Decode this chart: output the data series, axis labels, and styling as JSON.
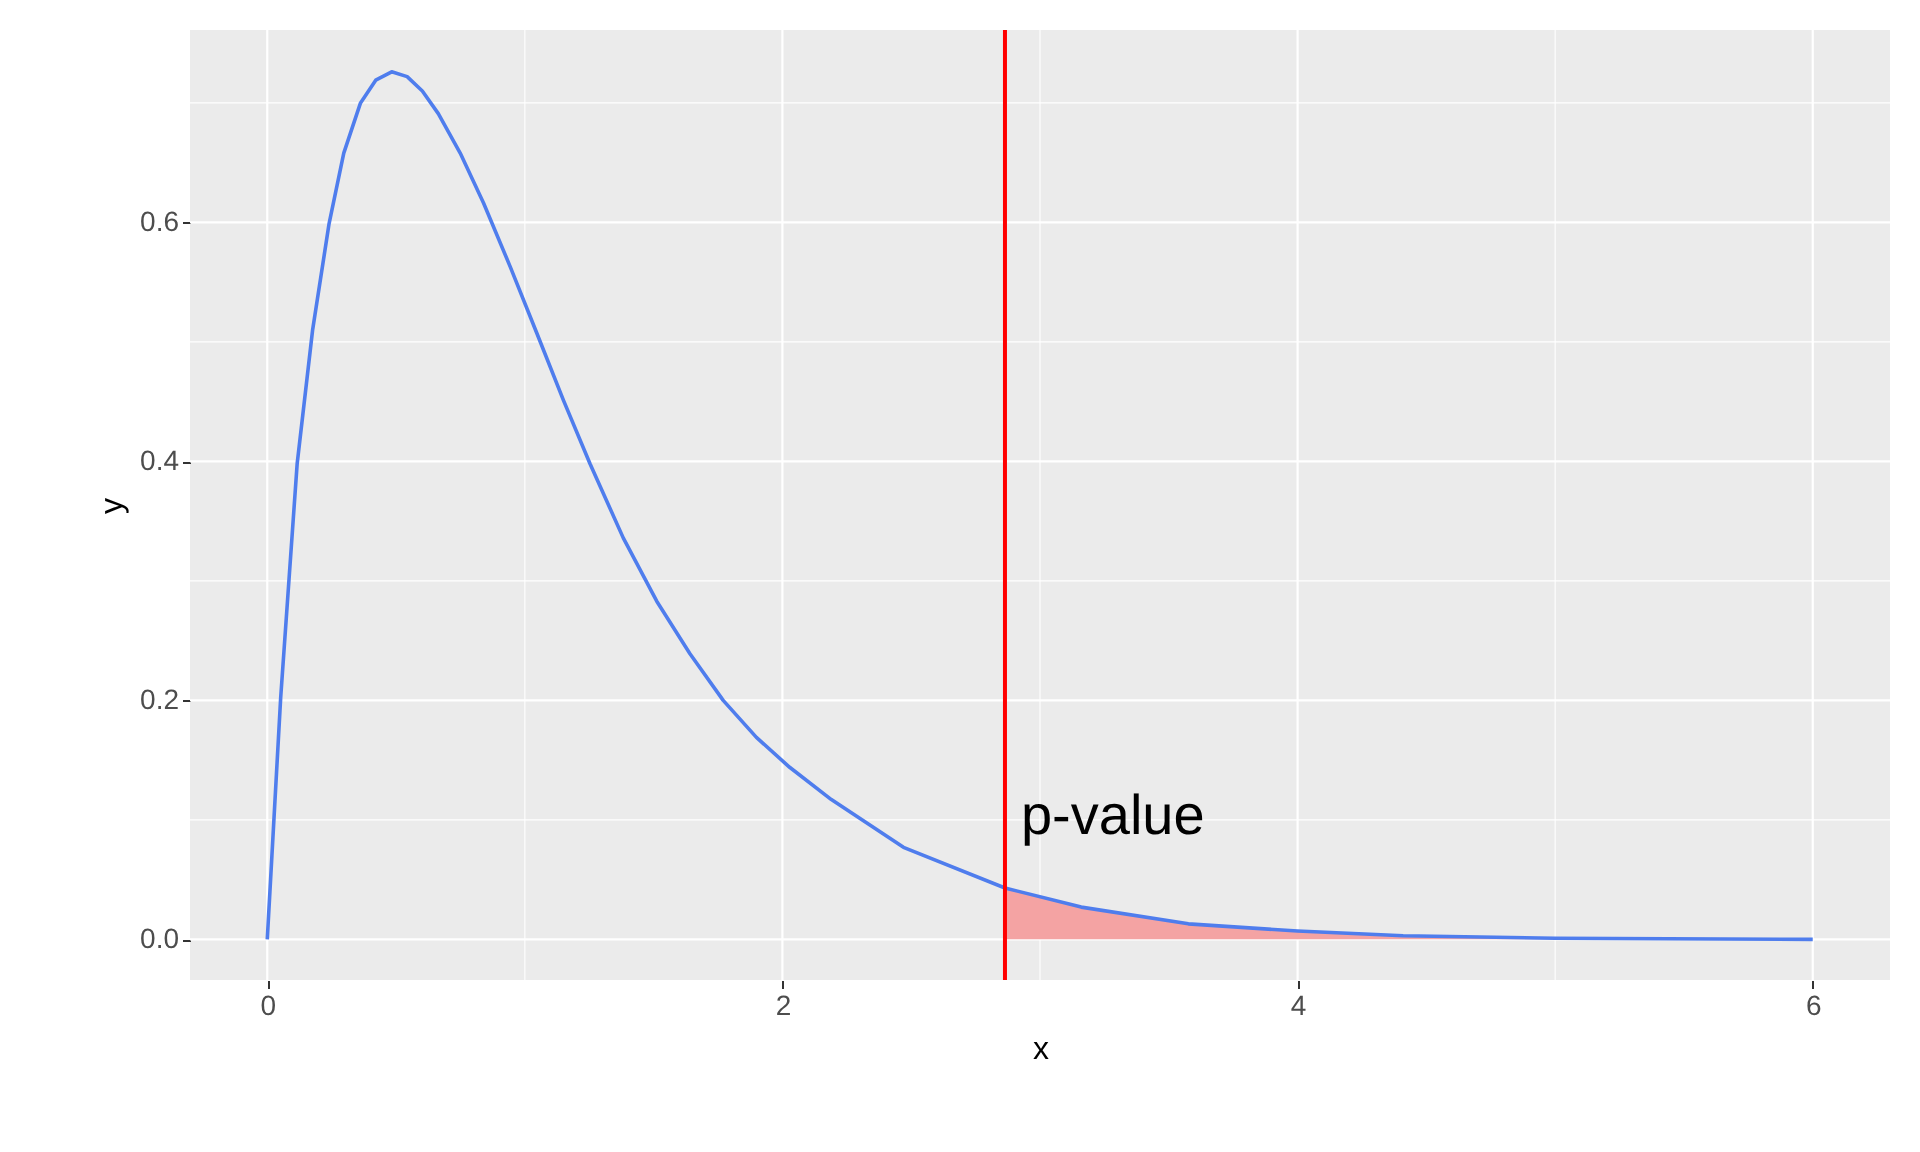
{
  "chart_data": {
    "type": "line",
    "xlabel": "x",
    "ylabel": "y",
    "xlim": [
      -0.3,
      6.3
    ],
    "ylim": [
      -0.034,
      0.761
    ],
    "xticks": [
      0,
      {
        "value": 1,
        "label": null
      },
      2,
      {
        "value": 3,
        "label": null
      },
      4,
      {
        "value": 5,
        "label": null
      },
      6
    ],
    "yticks": [
      {
        "value": 0,
        "label": "0.0"
      },
      {
        "value": 0.1,
        "label": null
      },
      0.2,
      {
        "value": 0.3,
        "label": null
      },
      0.4,
      {
        "value": 0.5,
        "label": null
      },
      0.6,
      {
        "value": 0.7,
        "label": null
      }
    ],
    "grid": true,
    "marker": "none",
    "line_style": "solid",
    "series": [
      {
        "color": "#4f7ded",
        "x": [
          0,
          0.052,
          0.116,
          0.176,
          0.24,
          0.297,
          0.362,
          0.421,
          0.483,
          0.543,
          0.602,
          0.664,
          0.749,
          0.84,
          0.943,
          1.047,
          1.15,
          1.253,
          1.382,
          1.512,
          1.641,
          1.77,
          1.899,
          2.028,
          2.19,
          2.47,
          2.864,
          3.16,
          3.576,
          4.0,
          4.41,
          5.0,
          6.0
        ],
        "values": [
          0,
          0.202,
          0.398,
          0.51,
          0.599,
          0.658,
          0.7,
          0.719,
          0.726,
          0.722,
          0.71,
          0.691,
          0.658,
          0.616,
          0.563,
          0.507,
          0.451,
          0.398,
          0.336,
          0.283,
          0.239,
          0.2,
          0.169,
          0.144,
          0.117,
          0.077,
          0.043,
          0.027,
          0.013,
          0.007,
          0.003,
          0.001,
          0.0
        ]
      },
      {
        "type": "area",
        "color": "#f4a3a3",
        "x": [
          2.864,
          3.16,
          3.576,
          4.0,
          4.41,
          5.0,
          6.0
        ],
        "values": [
          0.043,
          0.027,
          0.013,
          0.007,
          0.003,
          0.001,
          0.0
        ]
      }
    ],
    "ref_lines": [
      {
        "axis": "x",
        "value": 2.864,
        "color": "#ff0000",
        "line_style": "solid"
      }
    ],
    "annotations": [
      "p-value"
    ]
  }
}
